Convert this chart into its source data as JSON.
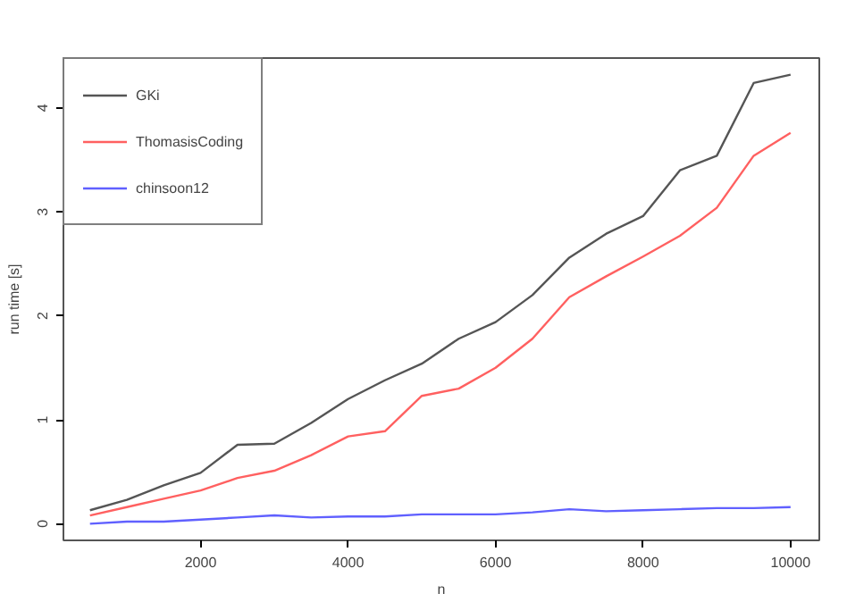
{
  "chart_data": {
    "type": "line",
    "xlabel": "n",
    "ylabel": "run time [s]",
    "x": [
      500,
      1000,
      1500,
      2000,
      2500,
      3000,
      3500,
      4000,
      4500,
      5000,
      5500,
      6000,
      6500,
      7000,
      7500,
      8000,
      8500,
      9000,
      9500,
      10000
    ],
    "series": [
      {
        "name": "GKi",
        "color": "#555555",
        "values": [
          0.13,
          0.23,
          0.37,
          0.49,
          0.76,
          0.77,
          0.97,
          1.2,
          1.38,
          1.54,
          1.78,
          1.94,
          2.2,
          2.56,
          2.79,
          2.96,
          3.4,
          3.54,
          4.24,
          4.32
        ]
      },
      {
        "name": "ThomasisCoding",
        "color": "#ff6060",
        "values": [
          0.08,
          0.16,
          0.24,
          0.32,
          0.44,
          0.51,
          0.66,
          0.84,
          0.89,
          1.23,
          1.3,
          1.5,
          1.78,
          2.18,
          2.38,
          2.57,
          2.77,
          3.04,
          3.54,
          3.76
        ]
      },
      {
        "name": "chinsoon12",
        "color": "#6060ff",
        "values": [
          0.0,
          0.02,
          0.02,
          0.04,
          0.06,
          0.08,
          0.06,
          0.07,
          0.07,
          0.09,
          0.09,
          0.09,
          0.11,
          0.14,
          0.12,
          0.13,
          0.14,
          0.15,
          0.15,
          0.16
        ]
      }
    ],
    "xlim": [
      140,
      10390
    ],
    "ylim": [
      -0.16,
      4.48
    ],
    "xticks": [
      2000,
      4000,
      6000,
      8000,
      10000
    ],
    "yticks": [
      0,
      1,
      2,
      3,
      4
    ],
    "grid": false,
    "legend": "top left",
    "line_style": "solid"
  }
}
